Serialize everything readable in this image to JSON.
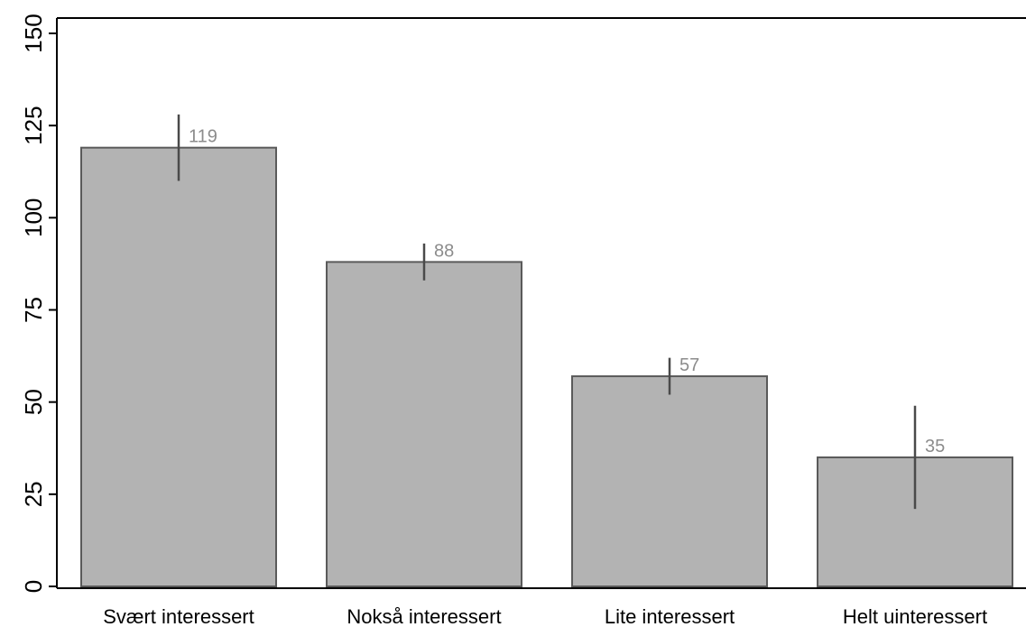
{
  "chart_data": {
    "type": "bar",
    "title": "",
    "xlabel": "",
    "ylabel": "",
    "categories": [
      "Svært interessert",
      "Nokså interessert",
      "Lite interessert",
      "Helt uinteressert"
    ],
    "values": [
      119,
      88,
      57,
      35
    ],
    "data_labels": [
      "119",
      "88",
      "57",
      "35"
    ],
    "error_bars": [
      {
        "low": 110,
        "high": 128
      },
      {
        "low": 83,
        "high": 93
      },
      {
        "low": 52,
        "high": 62
      },
      {
        "low": 21,
        "high": 49
      }
    ],
    "ylim": [
      0,
      150
    ],
    "yticks": [
      0,
      25,
      50,
      75,
      100,
      125,
      150
    ],
    "ytick_labels": [
      "0",
      "25",
      "50",
      "75",
      "100",
      "125",
      "150"
    ],
    "grid": false,
    "legend": "none",
    "colors": {
      "bar_fill": "#b3b3b3",
      "bar_stroke": "#5a5a5a",
      "error_bar": "#4a4a4a",
      "data_label": "#8c8c8c",
      "axis": "#000000"
    }
  }
}
